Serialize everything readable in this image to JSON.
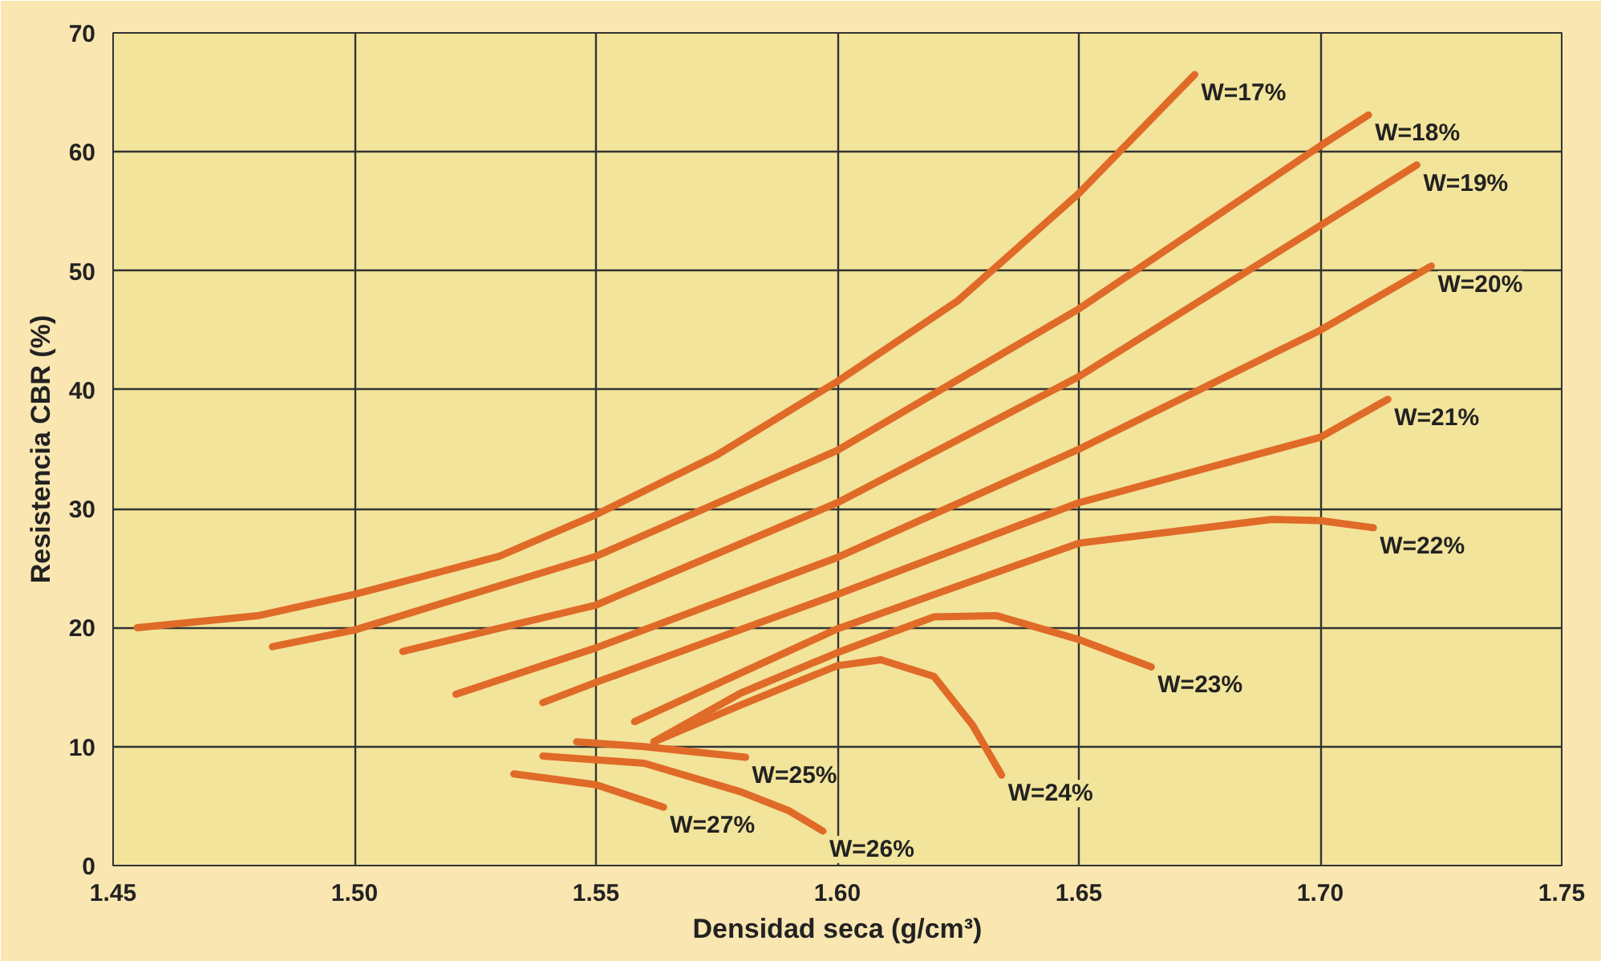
{
  "chart_data": {
    "type": "line",
    "xlabel": "Densidad seca (g/cm³)",
    "ylabel": "Resistencia CBR (%)",
    "xlim": [
      1.45,
      1.75
    ],
    "ylim": [
      0,
      70
    ],
    "xticks": [
      {
        "value": 1.45,
        "label": "1.45"
      },
      {
        "value": 1.5,
        "label": "1.50"
      },
      {
        "value": 1.55,
        "label": "1.55"
      },
      {
        "value": 1.6,
        "label": "1.60"
      },
      {
        "value": 1.65,
        "label": "1.65"
      },
      {
        "value": 1.7,
        "label": "1.70"
      },
      {
        "value": 1.75,
        "label": "1.75"
      }
    ],
    "yticks": [
      0,
      10,
      20,
      30,
      40,
      50,
      60,
      70
    ],
    "grid": true,
    "marker": "none",
    "line_style": "solid",
    "series": [
      {
        "name": "W=17%",
        "color": "#e06a28",
        "x": [
          1.455,
          1.48,
          1.5,
          1.53,
          1.55,
          1.575,
          1.6,
          1.625,
          1.65,
          1.674
        ],
        "values": [
          20,
          21,
          22.8,
          26,
          29.5,
          34.5,
          40.7,
          47.5,
          56.5,
          66.5
        ]
      },
      {
        "name": "W=18%",
        "color": "#e06a28",
        "x": [
          1.483,
          1.5,
          1.55,
          1.6,
          1.65,
          1.7,
          1.71
        ],
        "values": [
          18.4,
          19.8,
          26,
          34.9,
          46.8,
          60.5,
          63.1
        ]
      },
      {
        "name": "W=19%",
        "color": "#e06a28",
        "x": [
          1.51,
          1.55,
          1.6,
          1.65,
          1.7,
          1.72
        ],
        "values": [
          18,
          21.9,
          30.5,
          41.1,
          53.8,
          58.9
        ]
      },
      {
        "name": "W=20%",
        "color": "#e06a28",
        "x": [
          1.521,
          1.55,
          1.6,
          1.65,
          1.7,
          1.723
        ],
        "values": [
          14.4,
          18.3,
          25.9,
          35,
          45,
          50.4
        ]
      },
      {
        "name": "W=21%",
        "color": "#e06a28",
        "x": [
          1.539,
          1.55,
          1.6,
          1.65,
          1.7,
          1.714
        ],
        "values": [
          13.7,
          15.4,
          22.8,
          30.5,
          36,
          39.2
        ]
      },
      {
        "name": "W=22%",
        "color": "#e06a28",
        "x": [
          1.558,
          1.6,
          1.65,
          1.69,
          1.7,
          1.711
        ],
        "values": [
          12.1,
          19.9,
          27.1,
          29.1,
          29,
          28.4
        ]
      },
      {
        "name": "W=23%",
        "color": "#e06a28",
        "x": [
          1.562,
          1.58,
          1.6,
          1.62,
          1.633,
          1.65,
          1.665
        ],
        "values": [
          10.4,
          14.5,
          17.9,
          20.9,
          21,
          19,
          16.7
        ]
      },
      {
        "name": "W=24%",
        "color": "#e06a28",
        "x": [
          1.562,
          1.58,
          1.6,
          1.609,
          1.62,
          1.628,
          1.634
        ],
        "values": [
          10.4,
          13.5,
          16.8,
          17.3,
          15.9,
          11.8,
          7.6
        ]
      },
      {
        "name": "W=25%",
        "color": "#e06a28",
        "x": [
          1.546,
          1.56,
          1.581
        ],
        "values": [
          10.4,
          10,
          9.1
        ]
      },
      {
        "name": "W=26%",
        "color": "#e06a28",
        "x": [
          1.539,
          1.56,
          1.58,
          1.59,
          1.597
        ],
        "values": [
          9.2,
          8.6,
          6.2,
          4.6,
          2.9
        ]
      },
      {
        "name": "W=27%",
        "color": "#e06a28",
        "x": [
          1.533,
          1.55,
          1.564
        ],
        "values": [
          7.7,
          6.8,
          4.9
        ]
      }
    ]
  }
}
